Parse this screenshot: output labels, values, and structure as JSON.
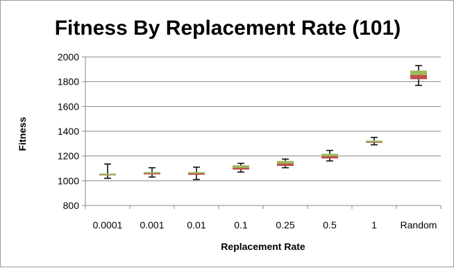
{
  "chart_data": {
    "type": "box",
    "title": "Fitness By Replacement Rate (101)",
    "xlabel": "Replacement Rate",
    "ylabel": "Fitness",
    "ylim": [
      800,
      2000
    ],
    "yticks": [
      800,
      1000,
      1200,
      1400,
      1600,
      1800,
      2000
    ],
    "grid": true,
    "legend": "none",
    "categories": [
      "0.0001",
      "0.001",
      "0.01",
      "0.1",
      "0.25",
      "0.5",
      "1",
      "Random"
    ],
    "boxes": [
      {
        "min": 1020,
        "q1": 1050,
        "median": 1055,
        "q3": 1058,
        "max": 1135
      },
      {
        "min": 1030,
        "q1": 1055,
        "median": 1062,
        "q3": 1070,
        "max": 1105
      },
      {
        "min": 1010,
        "q1": 1048,
        "median": 1060,
        "q3": 1070,
        "max": 1110
      },
      {
        "min": 1070,
        "q1": 1090,
        "median": 1105,
        "q3": 1125,
        "max": 1140
      },
      {
        "min": 1105,
        "q1": 1120,
        "median": 1140,
        "q3": 1160,
        "max": 1175
      },
      {
        "min": 1160,
        "q1": 1180,
        "median": 1198,
        "q3": 1218,
        "max": 1245
      },
      {
        "min": 1290,
        "q1": 1312,
        "median": 1318,
        "q3": 1324,
        "max": 1350
      },
      {
        "min": 1770,
        "q1": 1820,
        "median": 1855,
        "q3": 1890,
        "max": 1930
      }
    ],
    "colors": {
      "lower_box": "#c0504d",
      "upper_box": "#9bbb59",
      "whisker": "#000000",
      "grid": "#878787",
      "axis": "#878787"
    }
  }
}
